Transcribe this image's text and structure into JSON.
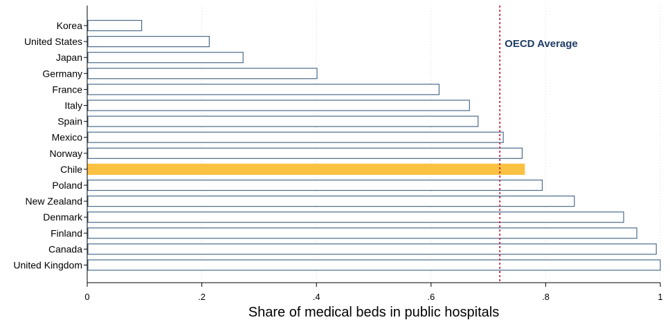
{
  "chart_data": {
    "type": "bar",
    "orientation": "horizontal",
    "categories": [
      "Korea",
      "United States",
      "Japan",
      "Germany",
      "France",
      "Italy",
      "Spain",
      "Mexico",
      "Norway",
      "Chile",
      "Poland",
      "New Zealand",
      "Denmark",
      "Finland",
      "Canada",
      "United Kingdom"
    ],
    "values": [
      0.095,
      0.213,
      0.272,
      0.401,
      0.614,
      0.667,
      0.682,
      0.726,
      0.759,
      0.763,
      0.794,
      0.85,
      0.936,
      0.959,
      0.993,
      1.0
    ],
    "highlight": "Chile",
    "title": "",
    "xlabel": "Share of medical beds in public hospitals",
    "ylabel": "",
    "xlim": [
      0,
      1
    ],
    "xticks": [
      0,
      0.2,
      0.4,
      0.6,
      0.8,
      1
    ],
    "xtick_labels": [
      "0",
      ".2",
      ".4",
      ".6",
      ".8",
      "1"
    ],
    "grid": "vertical dotted",
    "reference_line": {
      "value": 0.72,
      "label": "OECD Average"
    },
    "colors": {
      "bar_fill": "#ffffff",
      "bar_stroke": "#4a6a8a",
      "highlight_fill": "#fbc143",
      "reference_line": "#c8102e",
      "reference_label": "#1f3b63"
    }
  }
}
